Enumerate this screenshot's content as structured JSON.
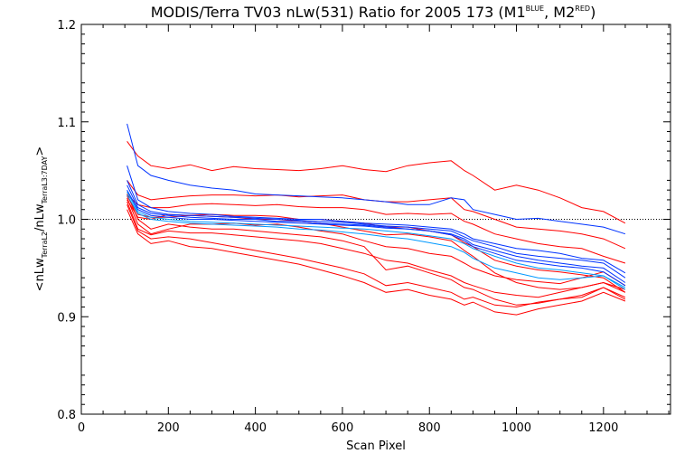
{
  "chart_data": {
    "type": "line",
    "title": {
      "main": "MODIS/Terra TV03 nLw(531) Ratio for 2005 173 (M1",
      "sup1": "BLUE",
      "mid": ", M2",
      "sup2": "RED",
      "end": ")"
    },
    "xlabel": "Scan Pixel",
    "ylabel": {
      "open": "<nLw",
      "sub1": "TerraL2",
      "mid": "/nLw",
      "sub2": "TerraL3:7DAY",
      "close": ">"
    },
    "xlim": [
      0,
      1354
    ],
    "ylim": [
      0.8,
      1.2
    ],
    "xticks": [
      0,
      200,
      400,
      600,
      800,
      1000,
      1200
    ],
    "yticks": [
      0.8,
      0.9,
      1.0,
      1.1,
      1.2
    ],
    "ytick_labels": [
      "0.8",
      "0.9",
      "1.0",
      "1.1",
      "1.2"
    ],
    "reference_line": 1.0,
    "x": [
      105,
      130,
      160,
      200,
      250,
      300,
      350,
      400,
      450,
      500,
      550,
      600,
      650,
      700,
      750,
      800,
      850,
      880,
      900,
      950,
      1000,
      1050,
      1100,
      1150,
      1200,
      1250
    ],
    "series": [
      {
        "color": "#ff0000",
        "values": [
          1.08,
          1.065,
          1.055,
          1.052,
          1.056,
          1.05,
          1.054,
          1.052,
          1.051,
          1.05,
          1.052,
          1.055,
          1.051,
          1.049,
          1.055,
          1.058,
          1.06,
          1.05,
          1.045,
          1.03,
          1.035,
          1.03,
          1.022,
          1.012,
          1.008,
          0.996
        ]
      },
      {
        "color": "#ff0000",
        "values": [
          1.04,
          1.025,
          1.02,
          1.022,
          1.024,
          1.025,
          1.025,
          1.024,
          1.025,
          1.023,
          1.024,
          1.025,
          1.02,
          1.018,
          1.018,
          1.02,
          1.022,
          1.01,
          1.008,
          1.0,
          0.992,
          0.99,
          0.988,
          0.985,
          0.98,
          0.97
        ]
      },
      {
        "color": "#ff0000",
        "values": [
          1.025,
          1.015,
          1.012,
          1.012,
          1.015,
          1.016,
          1.015,
          1.014,
          1.015,
          1.013,
          1.012,
          1.012,
          1.01,
          1.005,
          1.006,
          1.005,
          1.006,
          0.998,
          0.995,
          0.985,
          0.98,
          0.975,
          0.972,
          0.97,
          0.962,
          0.955
        ]
      },
      {
        "color": "#ff0000",
        "values": [
          1.02,
          1.002,
          1.0,
          1.005,
          1.004,
          1.005,
          1.004,
          1.004,
          1.003,
          1.0,
          1.0,
          0.998,
          0.996,
          0.992,
          0.992,
          0.988,
          0.984,
          0.976,
          0.972,
          0.958,
          0.952,
          0.948,
          0.946,
          0.943,
          0.94,
          0.925
        ]
      },
      {
        "color": "#ff0000",
        "values": [
          1.022,
          0.995,
          0.985,
          0.99,
          0.995,
          0.995,
          0.996,
          0.994,
          0.995,
          0.992,
          0.988,
          0.985,
          0.978,
          0.972,
          0.97,
          0.965,
          0.962,
          0.955,
          0.95,
          0.942,
          0.938,
          0.936,
          0.934,
          0.94,
          0.946,
          0.932
        ]
      },
      {
        "color": "#ff0000",
        "values": [
          1.018,
          0.99,
          0.984,
          0.988,
          0.986,
          0.986,
          0.984,
          0.982,
          0.98,
          0.978,
          0.975,
          0.97,
          0.965,
          0.958,
          0.955,
          0.948,
          0.942,
          0.935,
          0.932,
          0.925,
          0.922,
          0.92,
          0.925,
          0.93,
          0.935,
          0.928
        ]
      },
      {
        "color": "#ff0000",
        "values": [
          1.015,
          0.988,
          0.98,
          0.982,
          0.98,
          0.976,
          0.972,
          0.968,
          0.964,
          0.96,
          0.955,
          0.95,
          0.944,
          0.932,
          0.935,
          0.93,
          0.925,
          0.918,
          0.92,
          0.912,
          0.91,
          0.915,
          0.918,
          0.92,
          0.93,
          0.92
        ]
      },
      {
        "color": "#ff0000",
        "values": [
          1.01,
          0.985,
          0.975,
          0.978,
          0.972,
          0.97,
          0.966,
          0.962,
          0.958,
          0.954,
          0.948,
          0.942,
          0.935,
          0.925,
          0.928,
          0.922,
          0.918,
          0.912,
          0.915,
          0.905,
          0.902,
          0.908,
          0.912,
          0.916,
          0.925,
          0.916
        ]
      },
      {
        "color": "#ff0000",
        "values": [
          1.026,
          1.0,
          0.99,
          0.995,
          0.992,
          0.99,
          0.99,
          0.988,
          0.986,
          0.984,
          0.982,
          0.978,
          0.972,
          0.948,
          0.952,
          0.945,
          0.938,
          0.93,
          0.928,
          0.918,
          0.912,
          0.914,
          0.918,
          0.922,
          0.93,
          0.918
        ]
      },
      {
        "color": "#ff0000",
        "values": [
          1.024,
          1.005,
          1.002,
          1.002,
          1.004,
          1.003,
          1.002,
          1.0,
          1.0,
          0.998,
          0.996,
          0.992,
          0.988,
          0.984,
          0.985,
          0.982,
          0.978,
          0.968,
          0.962,
          0.945,
          0.935,
          0.93,
          0.928,
          0.93,
          0.935,
          0.925
        ]
      },
      {
        "color": "#0033ff",
        "values": [
          1.098,
          1.055,
          1.045,
          1.04,
          1.035,
          1.032,
          1.03,
          1.026,
          1.025,
          1.024,
          1.023,
          1.022,
          1.02,
          1.018,
          1.015,
          1.015,
          1.022,
          1.02,
          1.01,
          1.005,
          1.0,
          1.001,
          0.998,
          0.995,
          0.992,
          0.985
        ]
      },
      {
        "color": "#0033ff",
        "values": [
          1.055,
          1.02,
          1.012,
          1.008,
          1.006,
          1.005,
          1.003,
          1.002,
          1.001,
          1.0,
          1.0,
          0.998,
          0.996,
          0.995,
          0.994,
          0.992,
          0.99,
          0.985,
          0.98,
          0.975,
          0.97,
          0.968,
          0.965,
          0.96,
          0.958,
          0.945
        ]
      },
      {
        "color": "#0033ff",
        "values": [
          1.04,
          1.015,
          1.008,
          1.005,
          1.004,
          1.003,
          1.002,
          1.001,
          1.0,
          0.999,
          0.998,
          0.997,
          0.995,
          0.993,
          0.992,
          0.99,
          0.988,
          0.982,
          0.978,
          0.972,
          0.965,
          0.962,
          0.96,
          0.958,
          0.955,
          0.94
        ]
      },
      {
        "color": "#0033ff",
        "values": [
          1.035,
          1.012,
          1.006,
          1.004,
          1.002,
          1.001,
          1.0,
          1.0,
          0.998,
          0.998,
          0.996,
          0.995,
          0.994,
          0.992,
          0.99,
          0.988,
          0.985,
          0.98,
          0.974,
          0.968,
          0.962,
          0.958,
          0.955,
          0.952,
          0.95,
          0.935
        ]
      },
      {
        "color": "#0033ff",
        "values": [
          1.03,
          1.01,
          1.004,
          1.002,
          1.0,
          1.0,
          0.999,
          0.998,
          0.997,
          0.996,
          0.995,
          0.994,
          0.993,
          0.991,
          0.99,
          0.988,
          0.984,
          0.978,
          0.972,
          0.965,
          0.958,
          0.955,
          0.952,
          0.95,
          0.946,
          0.932
        ]
      },
      {
        "color": "#0099ff",
        "values": [
          1.028,
          1.008,
          1.002,
          1.0,
          0.998,
          0.997,
          0.996,
          0.995,
          0.994,
          0.993,
          0.992,
          0.991,
          0.99,
          0.988,
          0.986,
          0.983,
          0.98,
          0.975,
          0.97,
          0.962,
          0.955,
          0.95,
          0.948,
          0.945,
          0.942,
          0.928
        ]
      },
      {
        "color": "#0099ff",
        "values": [
          1.025,
          1.006,
          1.0,
          0.998,
          0.996,
          0.995,
          0.994,
          0.993,
          0.992,
          0.99,
          0.989,
          0.987,
          0.985,
          0.982,
          0.98,
          0.976,
          0.972,
          0.966,
          0.96,
          0.95,
          0.945,
          0.94,
          0.938,
          0.94,
          0.942,
          0.93
        ]
      }
    ]
  }
}
